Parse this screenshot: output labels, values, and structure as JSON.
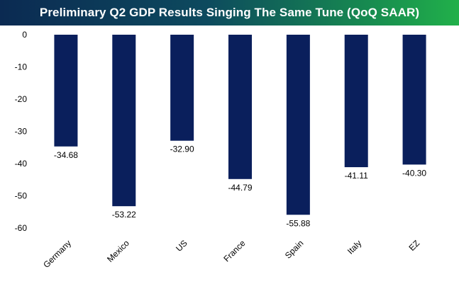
{
  "chart_data": {
    "type": "bar",
    "title": "Preliminary Q2 GDP Results Singing The Same Tune (QoQ SAAR)",
    "categories": [
      "Germany",
      "Mexico",
      "US",
      "France",
      "Spain",
      "Italy",
      "EZ"
    ],
    "values": [
      -34.68,
      -53.22,
      -32.9,
      -44.79,
      -55.88,
      -41.11,
      -40.3
    ],
    "data_labels": [
      "-34.68",
      "-53.22",
      "-32.90",
      "-44.79",
      "-55.88",
      "-41.11",
      "-40.30"
    ],
    "yticks": [
      "0",
      "-10",
      "-20",
      "-30",
      "-40",
      "-50",
      "-60"
    ],
    "ylim": [
      -60,
      0
    ],
    "xlabel": "",
    "ylabel": "",
    "grid": false,
    "legend": "none",
    "bar_color": "#0a1f5c",
    "title_bar_colors": [
      "#0b2a52",
      "#21b04a"
    ]
  }
}
